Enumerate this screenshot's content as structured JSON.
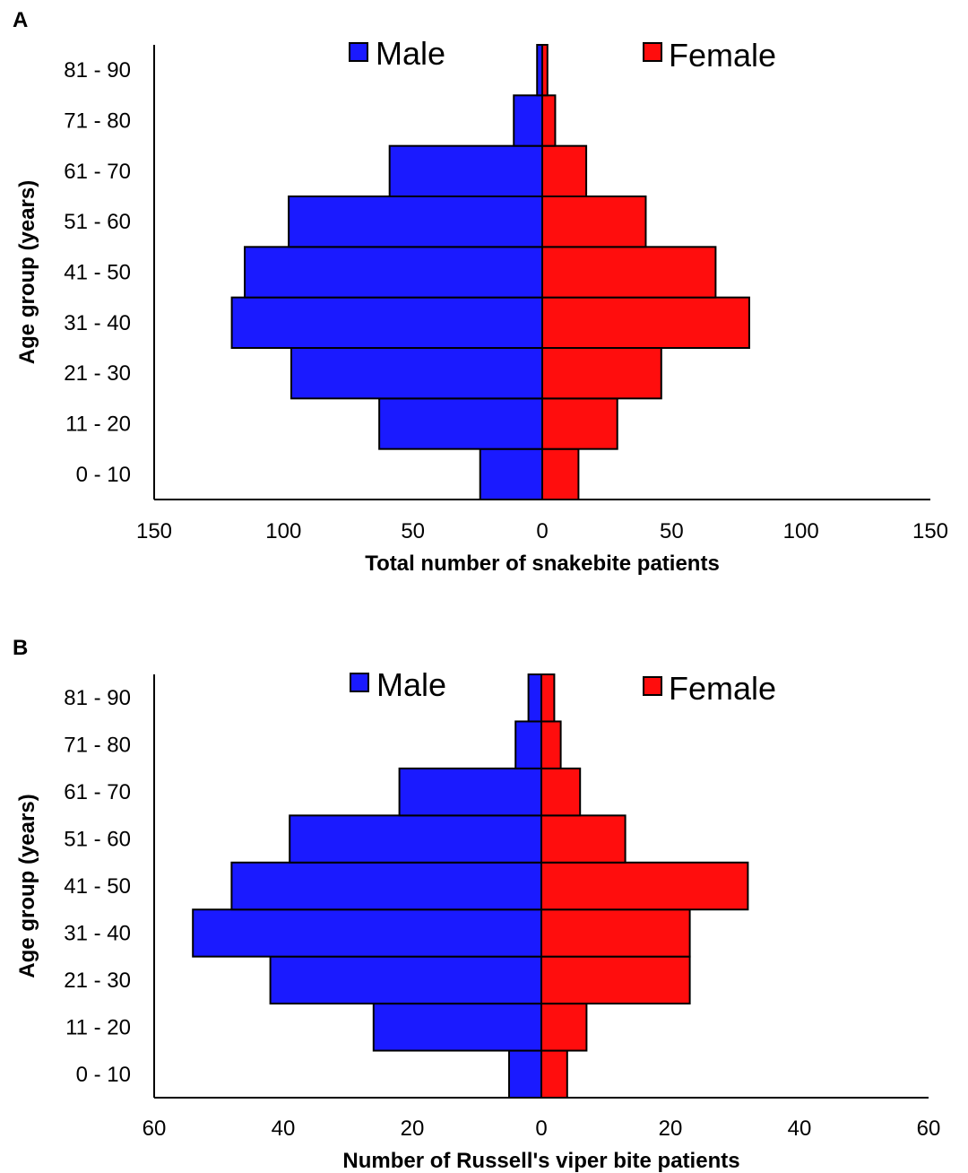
{
  "colors": {
    "male": "#1a1aff",
    "female": "#ff0d0d",
    "stroke": "#000000"
  },
  "chart_data": [
    {
      "panel": "A",
      "type": "bar",
      "orientation": "horizontal-population-pyramid",
      "categories": [
        "0 - 10",
        "11 - 20",
        "21 - 30",
        "31 - 40",
        "41 - 50",
        "51 - 60",
        "61 - 70",
        "71 - 80",
        "81 - 90"
      ],
      "series": [
        {
          "name": "Male",
          "values": [
            24,
            63,
            97,
            120,
            115,
            98,
            59,
            11,
            2
          ]
        },
        {
          "name": "Female",
          "values": [
            14,
            29,
            46,
            80,
            67,
            40,
            17,
            5,
            2
          ]
        }
      ],
      "xlabel": "Total number of snakebite patients",
      "ylabel": "Age group (years)",
      "xlim": [
        -150,
        150
      ],
      "xticks": [
        -150,
        -100,
        -50,
        0,
        50,
        100,
        150
      ],
      "xtick_labels": [
        "150",
        "100",
        "50",
        "0",
        "50",
        "100",
        "150"
      ],
      "legend_position": "top"
    },
    {
      "panel": "B",
      "type": "bar",
      "orientation": "horizontal-population-pyramid",
      "categories": [
        "0 - 10",
        "11 - 20",
        "21 - 30",
        "31 - 40",
        "41 - 50",
        "51 - 60",
        "61 - 70",
        "71 - 80",
        "81 - 90"
      ],
      "series": [
        {
          "name": "Male",
          "values": [
            5,
            26,
            42,
            54,
            48,
            39,
            22,
            4,
            2
          ]
        },
        {
          "name": "Female",
          "values": [
            4,
            7,
            23,
            23,
            32,
            13,
            6,
            3,
            2
          ]
        }
      ],
      "xlabel": "Number of Russell's viper bite patients",
      "ylabel": "Age group (years)",
      "xlim": [
        -60,
        60
      ],
      "xticks": [
        -60,
        -40,
        -20,
        0,
        20,
        40,
        60
      ],
      "xtick_labels": [
        "60",
        "40",
        "20",
        "0",
        "20",
        "40",
        "60"
      ],
      "legend_position": "top"
    }
  ]
}
